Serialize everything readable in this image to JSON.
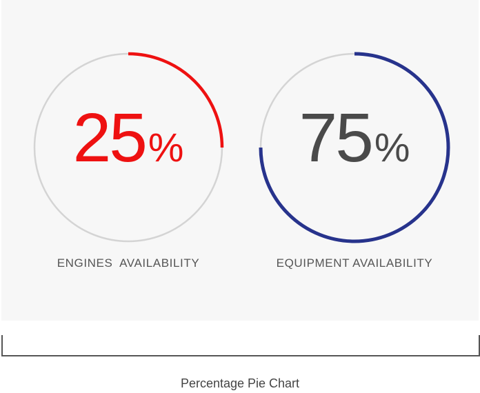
{
  "chart_data": [
    {
      "type": "pie",
      "value": 25,
      "unit": "%",
      "label": "ENGINES  AVAILABILITY",
      "color": "#ee1111",
      "value_color": "#ee1111",
      "track_color": "#d4d4d4",
      "max": 100
    },
    {
      "type": "pie",
      "value": 75,
      "unit": "%",
      "label": "EQUIPMENT AVAILABILITY",
      "color": "#27338c",
      "value_color": "#4a4a4a",
      "track_color": "#d4d4d4",
      "max": 100
    }
  ],
  "caption": "Percentage Pie Chart"
}
